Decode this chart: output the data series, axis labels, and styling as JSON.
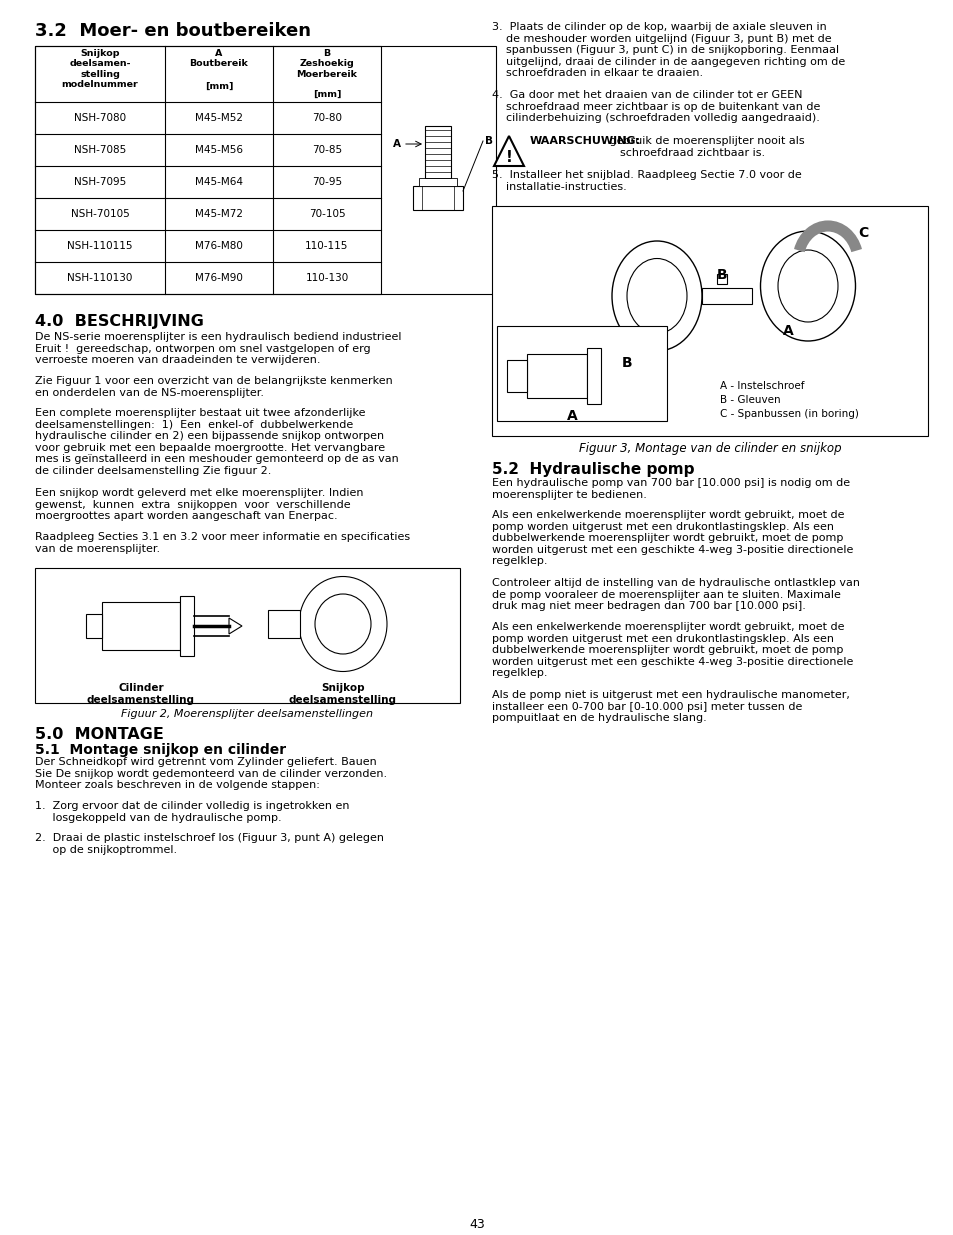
{
  "title": "3.2  Moer- en boutbereiken",
  "section4_title": "4.0  BESCHRIJVING",
  "section5_title": "5.0  MONTAGE",
  "section51_title": "5.1  Montage snijkop en cilinder",
  "table_headers_col1": "Snijkop\ndeelsamen-\nstelling\nmodelnummer",
  "table_headers_col2a": "A",
  "table_headers_col2b": "Boutbereik",
  "table_headers_col2c": "[mm]",
  "table_headers_col3a": "B",
  "table_headers_col3b": "Zeshoekig\nMoerbereik",
  "table_headers_col3c": "[mm]",
  "table_rows": [
    [
      "NSH-7080",
      "M45-M52",
      "70-80"
    ],
    [
      "NSH-7085",
      "M45-M56",
      "70-85"
    ],
    [
      "NSH-7095",
      "M45-M64",
      "70-95"
    ],
    [
      "NSH-70105",
      "M45-M72",
      "70-105"
    ],
    [
      "NSH-110115",
      "M76-M80",
      "110-115"
    ],
    [
      "NSH-110130",
      "M76-M90",
      "110-130"
    ]
  ],
  "para3": "3.  Plaats de cilinder op de kop, waarbij de axiale sleuven in\n    de meshouder worden uitgelijnd (Figuur 3, punt B) met de\n    spanbussen (Figuur 3, punt C) in de snijkopboring. Eenmaal\n    uitgelijnd, draai de cilinder in de aangegeven richting om de\n    schroefdraden in elkaar te draaien.",
  "para4": "4.  Ga door met het draaien van de cilinder tot er GEEN\n    schroefdraad meer zichtbaar is op de buitenkant van de\n    cilinderbehuizing (schroefdraden volledig aangedraaid).",
  "warning_bold": "WAARSCHUWING:",
  "warning_rest": " gebruik de moerensplijter nooit als\n    schroefdraad zichtbaar is.",
  "para5": "5.  Installeer het snijblad. Raadpleeg Sectie 7.0 voor de\n    installatie-instructies.",
  "fig3_caption": "Figuur 3, Montage van de cilinder en snijkop",
  "fig3_label_a": "A - Instelschroef",
  "fig3_label_b": "B - Gleuven",
  "fig3_label_c": "C - Spanbussen (in boring)",
  "fig2_caption": "Figuur 2, Moerensplijter deelsamenstellingen",
  "fig2_label_left": "Cilinder\ndeelsamenstelling",
  "fig2_label_right": "Snijkop\ndeelsamenstelling",
  "sec4_para1": "De NS-serie moerensplijter is een hydraulisch bediend industrieel\nEruit !  gereedschap, ontworpen om snel vastgelopen of erg\nverroeste moeren van draadeinden te verwijderen.",
  "sec4_para2": "Zie Figuur 1 voor een overzicht van de belangrijkste kenmerken\nen onderdelen van de NS-moerensplijter.",
  "sec4_para3": "Een complete moerensplijter bestaat uit twee afzonderlijke\ndeelsamenstellingen:  1)  Een  enkel-of  dubbelwerkende\nhydraulische cilinder en 2) een bijpassende snijkop ontworpen\nvoor gebruik met een bepaalde moergrootte. Het vervangbare\nmes is geïnstalleerd in een meshouder gemonteerd op de as van\nde cilinder deelsamenstelling Zie figuur 2.",
  "sec4_para4": "Een snijkop wordt geleverd met elke moerensplijter. Indien\ngewenst,  kunnen  extra  snijkoppen  voor  verschillende\nmoergroottes apart worden aangeschaft van Enerpac.",
  "sec4_para5": "Raadpleeg Secties 3.1 en 3.2 voor meer informatie en specificaties\nvan de moerensplijter.",
  "sec51_para1": "Der Schneidkopf wird getrennt vom Zylinder geliefert. Bauen\nSie De snijkop wordt gedemonteerd van de cilinder verzonden.\nMonteer zoals beschreven in de volgende stappen:",
  "sec51_item1": "1.  Zorg ervoor dat de cilinder volledig is ingetrokken en\n     losgekoppeld van de hydraulische pomp.",
  "sec51_item2": "2.  Draai de plastic instelschroef los (Figuur 3, punt A) gelegen\n     op de snijkoptrommel.",
  "sec52_title": "5.2  Hydraulische pomp",
  "sec52_para1": "Een hydraulische pomp van 700 bar [10.000 psi] is nodig om de\nmoerensplijter te bedienen.",
  "sec52_para2": "Als een enkelwerkende moerensplijter wordt gebruikt, moet de\npomp worden uitgerust met een drukontlastingsklep. Als een\ndubbelwerkende moerensplijter wordt gebruikt, moet de pomp\nworden uitgerust met een geschikte 4-weg 3-positie directionele\nregelklep.",
  "sec52_para3": "Controleer altijd de instelling van de hydraulische ontlastklep van\nde pomp vooraleer de moerensplijter aan te sluiten. Maximale\ndruk mag niet meer bedragen dan 700 bar [10.000 psi].",
  "sec52_para4": "Als een enkelwerkende moerensplijter wordt gebruikt, moet de\npomp worden uitgerust met een drukontlastingsklep. Als een\ndubbelwerkende moerensplijter wordt gebruikt, moet de pomp\nworden uitgerust met een geschikte 4-weg 3-positie directionele\nregelklep.",
  "sec52_para5": "Als de pomp niet is uitgerust met een hydraulische manometer,\ninstalleer een 0-700 bar [0-10.000 psi] meter tussen de\npompuitlaat en de hydraulische slang.",
  "page_number": "43",
  "bg_color": "#ffffff",
  "lm": 35,
  "rm": 465,
  "lcw": 430,
  "rcl": 492,
  "rcr": 930,
  "rcw": 438
}
